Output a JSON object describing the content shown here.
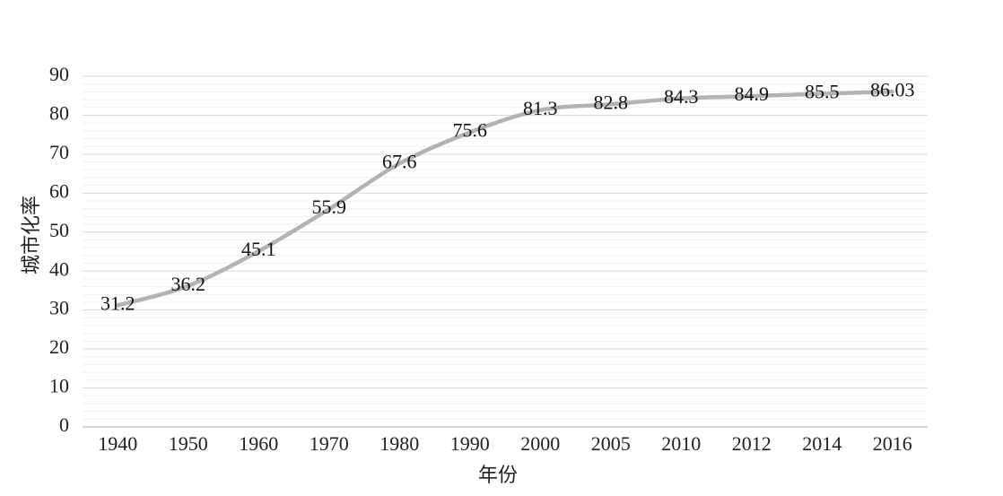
{
  "chart_data": {
    "type": "line",
    "xlabel": "年份",
    "ylabel": "城市化率",
    "categories": [
      "1940",
      "1950",
      "1960",
      "1970",
      "1980",
      "1990",
      "2000",
      "2005",
      "2010",
      "2012",
      "2014",
      "2016"
    ],
    "series": [
      {
        "values": [
          31.2,
          36.2,
          45.1,
          55.9,
          67.6,
          75.6,
          81.3,
          82.8,
          84.3,
          84.9,
          85.5,
          86.03
        ]
      }
    ],
    "ylim": [
      0,
      90
    ],
    "yticks": [
      0,
      10,
      20,
      30,
      40,
      50,
      60,
      70,
      80,
      90
    ],
    "grid": true,
    "show_legend": false,
    "smooth": true,
    "data_labels": true,
    "line_color": "#b3b3b3",
    "major_grid_color": "#d9d9d9",
    "minor_grid_color": "#efefef",
    "axis_color": "#bfbfbf"
  }
}
